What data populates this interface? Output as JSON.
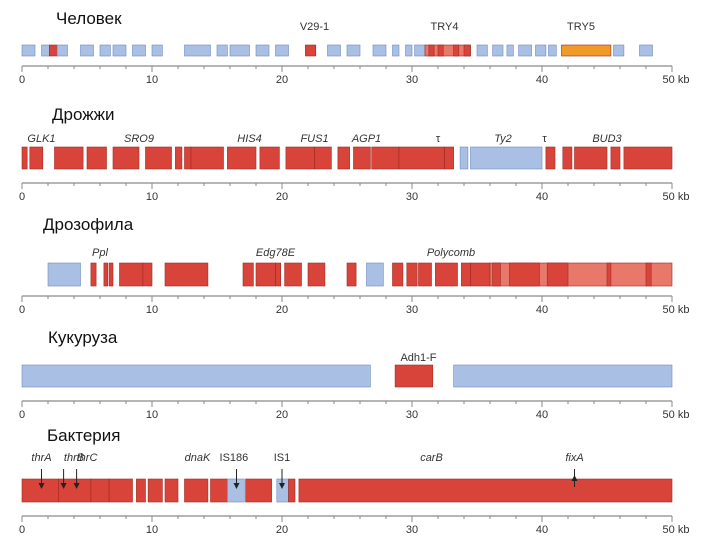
{
  "colors": {
    "red": "#d9443a",
    "orange": "#f09a2a",
    "salmon": "#e8786a",
    "blue": "#a9bfe3",
    "blueEdge": "#6f8cc0",
    "axis": "#8a8a8a",
    "text": "#333333",
    "bg": "#ffffff"
  },
  "axis": {
    "min": 0,
    "max": 50,
    "major_ticks": [
      0,
      10,
      20,
      30,
      40
    ],
    "end_label": "50 kb"
  },
  "panels": [
    {
      "organism": "Человек",
      "icon": "human-panel",
      "gene_labels": [
        {
          "text": "V29-1",
          "pos": 22.5,
          "italic": false
        },
        {
          "text": "TRY4",
          "pos": 32.5,
          "italic": false
        },
        {
          "text": "TRY5",
          "pos": 43,
          "italic": false
        }
      ],
      "segments": [
        {
          "s": 0.0,
          "e": 1.0,
          "c": "blue"
        },
        {
          "s": 1.5,
          "e": 2.1,
          "c": "blue"
        },
        {
          "s": 2.1,
          "e": 2.7,
          "c": "red"
        },
        {
          "s": 2.7,
          "e": 3.5,
          "c": "blue"
        },
        {
          "s": 4.5,
          "e": 5.5,
          "c": "blue"
        },
        {
          "s": 6.0,
          "e": 6.8,
          "c": "blue"
        },
        {
          "s": 7.0,
          "e": 8.0,
          "c": "blue"
        },
        {
          "s": 8.5,
          "e": 9.5,
          "c": "blue"
        },
        {
          "s": 10.0,
          "e": 10.8,
          "c": "blue"
        },
        {
          "s": 12.5,
          "e": 14.5,
          "c": "blue"
        },
        {
          "s": 15.0,
          "e": 15.8,
          "c": "blue"
        },
        {
          "s": 16.0,
          "e": 17.5,
          "c": "blue"
        },
        {
          "s": 18.0,
          "e": 19.0,
          "c": "blue"
        },
        {
          "s": 19.5,
          "e": 20.5,
          "c": "blue"
        },
        {
          "s": 21.8,
          "e": 22.6,
          "c": "red"
        },
        {
          "s": 23.5,
          "e": 24.5,
          "c": "blue"
        },
        {
          "s": 25.0,
          "e": 26.0,
          "c": "blue"
        },
        {
          "s": 27.0,
          "e": 28.0,
          "c": "blue"
        },
        {
          "s": 28.5,
          "e": 29.0,
          "c": "blue"
        },
        {
          "s": 29.5,
          "e": 30.0,
          "c": "blue"
        },
        {
          "s": 30.2,
          "e": 31.0,
          "c": "blue"
        },
        {
          "s": 31.0,
          "e": 34.5,
          "c": "salmon"
        },
        {
          "s": 31.3,
          "e": 31.7,
          "c": "red"
        },
        {
          "s": 32.0,
          "e": 32.4,
          "c": "red"
        },
        {
          "s": 33.2,
          "e": 33.6,
          "c": "red"
        },
        {
          "s": 34.0,
          "e": 34.5,
          "c": "red"
        },
        {
          "s": 35.0,
          "e": 35.8,
          "c": "blue"
        },
        {
          "s": 36.2,
          "e": 37.0,
          "c": "blue"
        },
        {
          "s": 37.3,
          "e": 37.8,
          "c": "blue"
        },
        {
          "s": 38.2,
          "e": 39.2,
          "c": "blue"
        },
        {
          "s": 39.5,
          "e": 40.3,
          "c": "blue"
        },
        {
          "s": 40.5,
          "e": 41.1,
          "c": "blue"
        },
        {
          "s": 41.5,
          "e": 45.3,
          "c": "orange"
        },
        {
          "s": 45.5,
          "e": 46.3,
          "c": "blue"
        },
        {
          "s": 47.5,
          "e": 48.5,
          "c": "blue"
        }
      ],
      "markers": []
    },
    {
      "organism": "Дрожжи",
      "icon": "yeast-panel",
      "gene_labels": [
        {
          "text": "GLK1",
          "pos": 1.5,
          "italic": true
        },
        {
          "text": "SRO9",
          "pos": 9.0,
          "italic": true
        },
        {
          "text": "HIS4",
          "pos": 17.5,
          "italic": true
        },
        {
          "text": "FUS1",
          "pos": 22.5,
          "italic": true
        },
        {
          "text": "AGP1",
          "pos": 26.5,
          "italic": true
        },
        {
          "text": "τ",
          "pos": 32.0,
          "italic": false
        },
        {
          "text": "Ty2",
          "pos": 37.0,
          "italic": true
        },
        {
          "text": "τ",
          "pos": 40.2,
          "italic": false
        },
        {
          "text": "BUD3",
          "pos": 45.0,
          "italic": true
        }
      ],
      "segments": [
        {
          "s": 0.0,
          "e": 0.4,
          "c": "red"
        },
        {
          "s": 0.6,
          "e": 1.6,
          "c": "red"
        },
        {
          "s": 2.5,
          "e": 4.7,
          "c": "red"
        },
        {
          "s": 5.0,
          "e": 6.5,
          "c": "red"
        },
        {
          "s": 7.0,
          "e": 9.0,
          "c": "red"
        },
        {
          "s": 9.5,
          "e": 11.5,
          "c": "red"
        },
        {
          "s": 11.8,
          "e": 12.3,
          "c": "red"
        },
        {
          "s": 12.5,
          "e": 13.0,
          "c": "red"
        },
        {
          "s": 13.0,
          "e": 15.5,
          "c": "red"
        },
        {
          "s": 15.8,
          "e": 18.0,
          "c": "red"
        },
        {
          "s": 18.3,
          "e": 19.8,
          "c": "red"
        },
        {
          "s": 20.3,
          "e": 22.5,
          "c": "red"
        },
        {
          "s": 22.5,
          "e": 23.8,
          "c": "red"
        },
        {
          "s": 24.3,
          "e": 25.2,
          "c": "red"
        },
        {
          "s": 25.5,
          "e": 26.8,
          "c": "red"
        },
        {
          "s": 26.9,
          "e": 29.0,
          "c": "red"
        },
        {
          "s": 29.0,
          "e": 32.5,
          "c": "red"
        },
        {
          "s": 32.5,
          "e": 33.2,
          "c": "red"
        },
        {
          "s": 33.7,
          "e": 34.3,
          "c": "blue"
        },
        {
          "s": 34.5,
          "e": 40.0,
          "c": "blue"
        },
        {
          "s": 40.3,
          "e": 41.0,
          "c": "red"
        },
        {
          "s": 41.6,
          "e": 42.3,
          "c": "red"
        },
        {
          "s": 42.5,
          "e": 45.0,
          "c": "red"
        },
        {
          "s": 45.3,
          "e": 46.0,
          "c": "red"
        },
        {
          "s": 46.3,
          "e": 50.0,
          "c": "red"
        }
      ],
      "markers": []
    },
    {
      "organism": "Дрозофила",
      "icon": "drosophila-panel",
      "gene_labels": [
        {
          "text": "Ppl",
          "pos": 6.0,
          "italic": true
        },
        {
          "text": "Edg78E",
          "pos": 19.5,
          "italic": true
        },
        {
          "text": "Polycomb",
          "pos": 33.0,
          "italic": true
        }
      ],
      "segments": [
        {
          "s": 2.0,
          "e": 4.5,
          "c": "blue"
        },
        {
          "s": 5.3,
          "e": 5.7,
          "c": "red"
        },
        {
          "s": 6.3,
          "e": 6.6,
          "c": "red"
        },
        {
          "s": 6.7,
          "e": 7.0,
          "c": "red"
        },
        {
          "s": 7.5,
          "e": 9.3,
          "c": "red"
        },
        {
          "s": 9.3,
          "e": 10.0,
          "c": "red"
        },
        {
          "s": 11.0,
          "e": 14.3,
          "c": "red"
        },
        {
          "s": 17.0,
          "e": 17.8,
          "c": "red"
        },
        {
          "s": 18.0,
          "e": 19.5,
          "c": "red"
        },
        {
          "s": 19.5,
          "e": 19.9,
          "c": "red"
        },
        {
          "s": 20.2,
          "e": 21.5,
          "c": "red"
        },
        {
          "s": 22.0,
          "e": 23.3,
          "c": "red"
        },
        {
          "s": 25.0,
          "e": 25.7,
          "c": "red"
        },
        {
          "s": 26.5,
          "e": 27.8,
          "c": "blue"
        },
        {
          "s": 28.5,
          "e": 29.3,
          "c": "red"
        },
        {
          "s": 29.6,
          "e": 30.4,
          "c": "red"
        },
        {
          "s": 30.5,
          "e": 31.5,
          "c": "red"
        },
        {
          "s": 31.8,
          "e": 33.5,
          "c": "red"
        },
        {
          "s": 33.8,
          "e": 34.5,
          "c": "red"
        },
        {
          "s": 34.5,
          "e": 36.0,
          "c": "red"
        },
        {
          "s": 36.0,
          "e": 50.0,
          "c": "salmon"
        },
        {
          "s": 36.2,
          "e": 36.8,
          "c": "red"
        },
        {
          "s": 37.5,
          "e": 39.8,
          "c": "red"
        },
        {
          "s": 40.4,
          "e": 42.0,
          "c": "red"
        },
        {
          "s": 45.0,
          "e": 45.3,
          "c": "red"
        },
        {
          "s": 48.0,
          "e": 48.4,
          "c": "red"
        }
      ],
      "markers": []
    },
    {
      "organism": "Кукуруза",
      "icon": "maize-panel",
      "gene_labels": [
        {
          "text": "Adh1-F",
          "pos": 30.5,
          "italic": false
        }
      ],
      "segments": [
        {
          "s": 0.0,
          "e": 26.8,
          "c": "blue"
        },
        {
          "s": 28.7,
          "e": 31.6,
          "c": "red"
        },
        {
          "s": 33.2,
          "e": 50.0,
          "c": "blue"
        }
      ],
      "markers": []
    },
    {
      "organism": "Бактерия",
      "icon": "bacteria-panel",
      "gene_labels": [
        {
          "text": "thrA",
          "pos": 1.5,
          "italic": true
        },
        {
          "text": "thrB",
          "pos": 4.0,
          "italic": true
        },
        {
          "text": "thrC",
          "pos": 5.0,
          "italic": true
        },
        {
          "text": "dnaK",
          "pos": 13.5,
          "italic": true
        },
        {
          "text": "IS186",
          "pos": 16.3,
          "italic": false
        },
        {
          "text": "IS1",
          "pos": 20.0,
          "italic": false
        },
        {
          "text": "carB",
          "pos": 31.5,
          "italic": true
        },
        {
          "text": "fixA",
          "pos": 42.5,
          "italic": true
        }
      ],
      "segments": [
        {
          "s": 0.0,
          "e": 2.8,
          "c": "red"
        },
        {
          "s": 2.8,
          "e": 5.3,
          "c": "red"
        },
        {
          "s": 5.3,
          "e": 6.7,
          "c": "red"
        },
        {
          "s": 6.7,
          "e": 8.5,
          "c": "red"
        },
        {
          "s": 8.8,
          "e": 9.5,
          "c": "red"
        },
        {
          "s": 9.7,
          "e": 10.8,
          "c": "red"
        },
        {
          "s": 11.0,
          "e": 12.0,
          "c": "red"
        },
        {
          "s": 12.5,
          "e": 14.3,
          "c": "red"
        },
        {
          "s": 14.5,
          "e": 15.8,
          "c": "red"
        },
        {
          "s": 15.8,
          "e": 17.1,
          "c": "blue"
        },
        {
          "s": 17.2,
          "e": 19.2,
          "c": "red"
        },
        {
          "s": 19.6,
          "e": 20.5,
          "c": "blue"
        },
        {
          "s": 20.5,
          "e": 21.0,
          "c": "red"
        },
        {
          "s": 21.3,
          "e": 50.0,
          "c": "red"
        }
      ],
      "markers": [
        {
          "pos": 1.5,
          "dir": "down"
        },
        {
          "pos": 3.2,
          "dir": "down"
        },
        {
          "pos": 4.2,
          "dir": "down"
        },
        {
          "pos": 16.5,
          "dir": "down"
        },
        {
          "pos": 20.0,
          "dir": "down"
        },
        {
          "pos": 42.5,
          "dir": "up"
        }
      ]
    }
  ]
}
